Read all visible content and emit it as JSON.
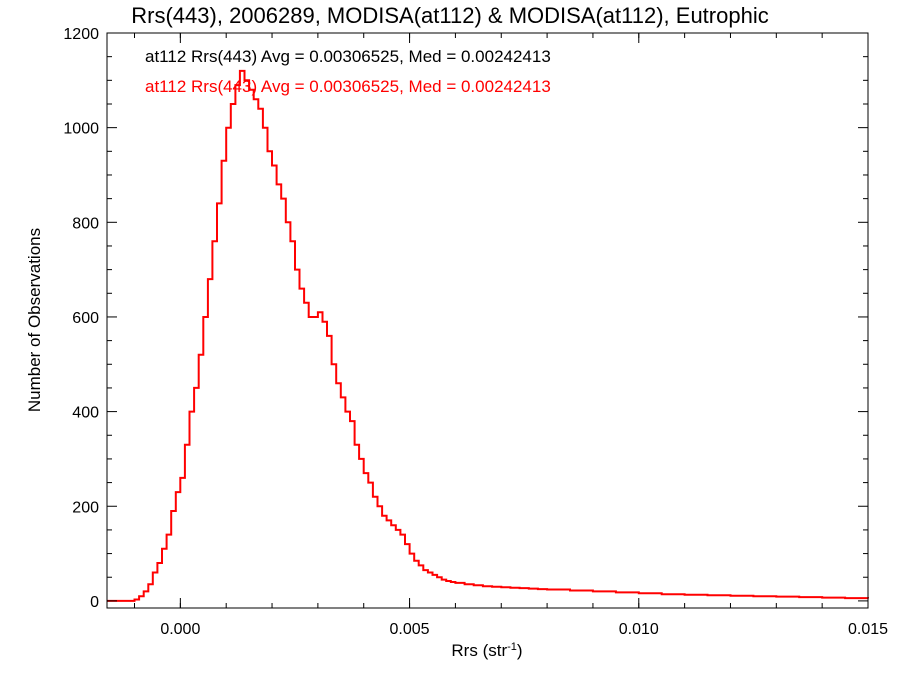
{
  "chart_data": {
    "type": "line",
    "step": true,
    "title": "Rrs(443), 2006289, MODISA(at112) & MODISA(at112), Eutrophic",
    "xlabel": "Rrs (str",
    "xlabel_superscript": "-1",
    "xlabel_suffix": ")",
    "ylabel": "Number of Observations",
    "xlim": [
      -0.0016,
      0.015
    ],
    "ylim": [
      -15,
      1200
    ],
    "xticks": [
      0.0,
      0.005,
      0.01,
      0.015
    ],
    "xtick_labels": [
      "0.000",
      "0.005",
      "0.010",
      "0.015"
    ],
    "yticks": [
      0,
      200,
      400,
      600,
      800,
      1000,
      1200
    ],
    "ytick_labels": [
      "0",
      "200",
      "400",
      "600",
      "800",
      "1000",
      "1200"
    ],
    "grid": false,
    "annotations": [
      {
        "text": "at112 Rrs(443) Avg = 0.00306525, Med = 0.00242413",
        "color": "#000000"
      },
      {
        "text": "at112 Rrs(443) Avg = 0.00306525, Med = 0.00242413",
        "color": "#ff0000"
      }
    ],
    "series": [
      {
        "color": "#ff0000",
        "x": [
          -0.0016,
          -0.0012,
          -0.001,
          -0.0009,
          -0.0008,
          -0.0007,
          -0.0006,
          -0.0005,
          -0.0004,
          -0.0003,
          -0.0002,
          -0.0001,
          0.0,
          0.0001,
          0.0002,
          0.0003,
          0.0004,
          0.0005,
          0.0006,
          0.0007,
          0.0008,
          0.0009,
          0.001,
          0.0011,
          0.0012,
          0.0013,
          0.0014,
          0.0015,
          0.0016,
          0.0017,
          0.0018,
          0.0019,
          0.002,
          0.0021,
          0.0022,
          0.0023,
          0.0024,
          0.0025,
          0.0026,
          0.0027,
          0.0028,
          0.0029,
          0.003,
          0.0031,
          0.0032,
          0.0033,
          0.0034,
          0.0035,
          0.0036,
          0.0037,
          0.0038,
          0.0039,
          0.004,
          0.0041,
          0.0042,
          0.0043,
          0.0044,
          0.0045,
          0.0046,
          0.0047,
          0.0048,
          0.0049,
          0.005,
          0.0051,
          0.0052,
          0.0053,
          0.0054,
          0.0055,
          0.0056,
          0.0057,
          0.0058,
          0.0059,
          0.006,
          0.0062,
          0.0064,
          0.0066,
          0.0068,
          0.007,
          0.0072,
          0.0074,
          0.0076,
          0.0078,
          0.008,
          0.0085,
          0.009,
          0.0095,
          0.01,
          0.0105,
          0.011,
          0.0115,
          0.012,
          0.0125,
          0.013,
          0.0135,
          0.014,
          0.0145,
          0.015
        ],
        "y": [
          0,
          0,
          3,
          10,
          20,
          35,
          60,
          80,
          110,
          140,
          190,
          230,
          260,
          330,
          400,
          450,
          520,
          600,
          680,
          760,
          840,
          930,
          1000,
          1050,
          1090,
          1120,
          1100,
          1080,
          1060,
          1040,
          1000,
          950,
          920,
          880,
          850,
          800,
          760,
          700,
          660,
          630,
          600,
          600,
          610,
          590,
          560,
          500,
          460,
          430,
          400,
          380,
          330,
          300,
          270,
          250,
          220,
          200,
          180,
          170,
          160,
          150,
          140,
          120,
          100,
          85,
          75,
          65,
          60,
          55,
          50,
          45,
          42,
          40,
          38,
          35,
          33,
          31,
          30,
          29,
          28,
          27,
          26,
          25,
          24,
          22,
          20,
          18,
          16,
          14,
          13,
          12,
          11,
          10,
          9,
          8,
          7,
          6,
          5
        ]
      }
    ]
  }
}
